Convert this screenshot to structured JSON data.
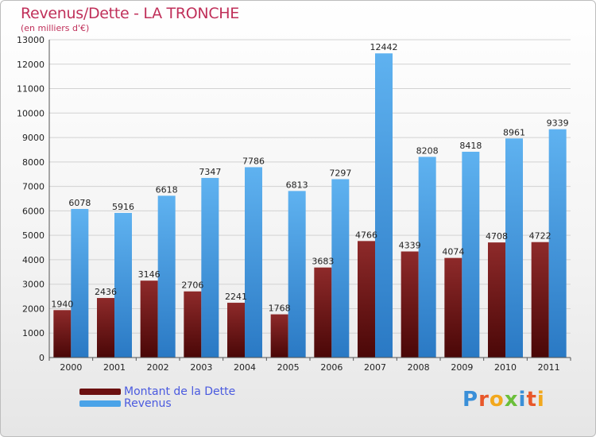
{
  "chart_data": {
    "type": "bar",
    "title": "Revenus/Dette - LA TRONCHE",
    "subtitle": "(en milliers d'€)",
    "categories": [
      "2000",
      "2001",
      "2002",
      "2003",
      "2004",
      "2005",
      "2006",
      "2007",
      "2008",
      "2009",
      "2010",
      "2011"
    ],
    "ylim": [
      0,
      13000
    ],
    "yticks": [
      0,
      1000,
      2000,
      3000,
      4000,
      5000,
      6000,
      7000,
      8000,
      9000,
      10000,
      11000,
      12000,
      13000
    ],
    "series": [
      {
        "name": "Montant de la Dette",
        "color": "#7a1a1a",
        "values": [
          1940,
          2436,
          3146,
          2706,
          2241,
          1768,
          3683,
          4766,
          4339,
          4074,
          4708,
          4722
        ]
      },
      {
        "name": "Revenus",
        "color": "#4aa3e8",
        "values": [
          6078,
          5916,
          6618,
          7347,
          7786,
          6813,
          7297,
          12442,
          8208,
          8418,
          8961,
          9339
        ]
      }
    ],
    "legend_position": "bottom-left"
  },
  "logo": {
    "letters": [
      "P",
      "r",
      "o",
      "x",
      "i",
      "t",
      "i"
    ],
    "colors": [
      "#3a8fd8",
      "#e8572a",
      "#f2a81d",
      "#6bbf3a",
      "#3a8fd8",
      "#e8572a",
      "#f2a81d"
    ]
  }
}
